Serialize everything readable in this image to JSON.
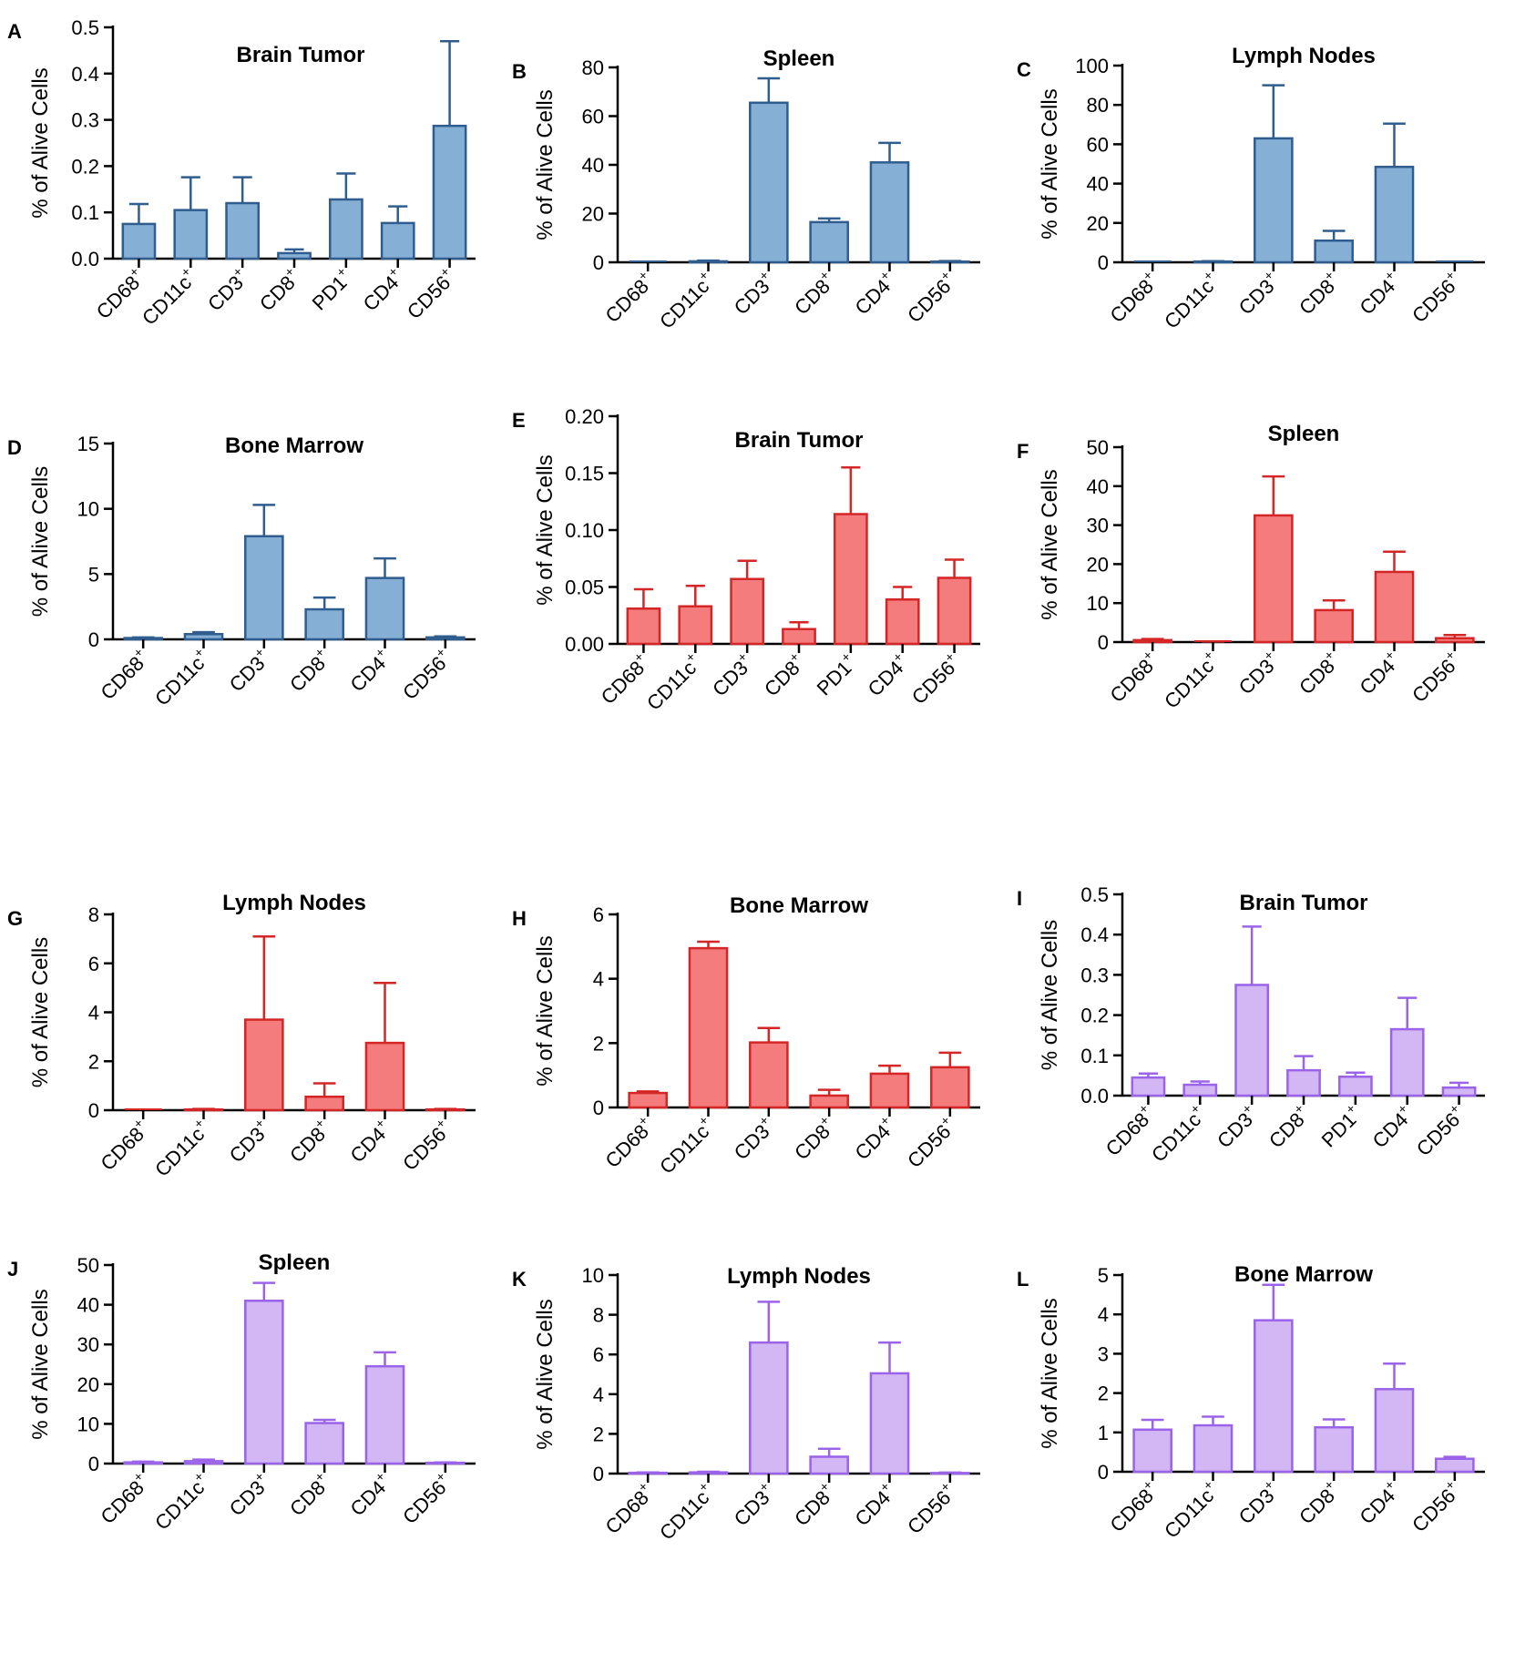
{
  "figure": {
    "ylabel_text": "% of Alive Cells",
    "colors": {
      "blue": {
        "fill": "#86afd6",
        "stroke": "#2f5d8e"
      },
      "red": {
        "fill": "#f47c7c",
        "stroke": "#d42626"
      },
      "purple": {
        "fill": "#d3b6f4",
        "stroke": "#9a63e8"
      }
    }
  },
  "chart_data": [
    {
      "letter": "A",
      "type": "bar",
      "title": "Brain Tumor",
      "color": "blue",
      "ylabel": "% of Alive Cells",
      "ylim": [
        0,
        0.5
      ],
      "yticks": [
        "0.0",
        "0.1",
        "0.2",
        "0.3",
        "0.4",
        "0.5"
      ],
      "categories": [
        "CD68",
        "CD11c",
        "CD3",
        "CD8",
        "PD1",
        "CD4",
        "CD56"
      ],
      "values": [
        0.075,
        0.105,
        0.12,
        0.012,
        0.128,
        0.077,
        0.287
      ],
      "errors": [
        0.043,
        0.071,
        0.056,
        0.008,
        0.056,
        0.036,
        0.183
      ]
    },
    {
      "letter": "B",
      "type": "bar",
      "title": "Spleen",
      "color": "blue",
      "ylabel": "% of Alive Cells",
      "ylim": [
        0,
        80
      ],
      "yticks": [
        "0",
        "20",
        "40",
        "60",
        "80"
      ],
      "categories": [
        "CD68",
        "CD11c",
        "CD3",
        "CD8",
        "CD4",
        "CD56"
      ],
      "values": [
        0,
        0.4,
        65.5,
        16.5,
        41,
        0.3
      ],
      "errors": [
        0,
        0.3,
        10,
        1.5,
        8,
        0.2
      ]
    },
    {
      "letter": "C",
      "type": "bar",
      "title": "Lymph Nodes",
      "color": "blue",
      "ylabel": "% of Alive Cells",
      "ylim": [
        0,
        100
      ],
      "yticks": [
        "0",
        "20",
        "40",
        "60",
        "80",
        "100"
      ],
      "categories": [
        "CD68",
        "CD11c",
        "CD3",
        "CD8",
        "CD4",
        "CD56"
      ],
      "values": [
        0,
        0.4,
        63,
        11,
        48.5,
        0
      ],
      "errors": [
        0,
        0.2,
        27,
        5,
        22,
        0
      ]
    },
    {
      "letter": "D",
      "type": "bar",
      "title": "Bone Marrow",
      "color": "blue",
      "ylabel": "% of Alive Cells",
      "ylim": [
        0,
        15
      ],
      "yticks": [
        "0",
        "5",
        "10",
        "15"
      ],
      "categories": [
        "CD68",
        "CD11c",
        "CD3",
        "CD8",
        "CD4",
        "CD56"
      ],
      "values": [
        0.1,
        0.4,
        7.9,
        2.3,
        4.7,
        0.15
      ],
      "errors": [
        0.05,
        0.15,
        2.4,
        0.9,
        1.5,
        0.08
      ]
    },
    {
      "letter": "E",
      "type": "bar",
      "title": "Brain Tumor",
      "color": "red",
      "ylabel": "% of Alive Cells",
      "ylim": [
        0,
        0.2
      ],
      "yticks": [
        "0.00",
        "0.05",
        "0.10",
        "0.15",
        "0.20"
      ],
      "categories": [
        "CD68",
        "CD11c",
        "CD3",
        "CD8",
        "PD1",
        "CD4",
        "CD56"
      ],
      "values": [
        0.031,
        0.033,
        0.057,
        0.013,
        0.114,
        0.039,
        0.058
      ],
      "errors": [
        0.017,
        0.018,
        0.016,
        0.006,
        0.041,
        0.011,
        0.016
      ]
    },
    {
      "letter": "F",
      "type": "bar",
      "title": "Spleen",
      "color": "red",
      "ylabel": "% of Alive Cells",
      "ylim": [
        0,
        50
      ],
      "yticks": [
        "0",
        "10",
        "20",
        "30",
        "40",
        "50"
      ],
      "categories": [
        "CD68",
        "CD11c",
        "CD3",
        "CD8",
        "CD4",
        "CD56"
      ],
      "values": [
        0.5,
        0.1,
        32.5,
        8.2,
        18,
        1
      ],
      "errors": [
        0.3,
        0.05,
        10,
        2.5,
        5.2,
        0.8
      ]
    },
    {
      "letter": "G",
      "type": "bar",
      "title": "Lymph Nodes",
      "color": "red",
      "ylabel": "% of Alive Cells",
      "ylim": [
        0,
        8
      ],
      "yticks": [
        "0",
        "2",
        "4",
        "6",
        "8"
      ],
      "categories": [
        "CD68",
        "CD11c",
        "CD3",
        "CD8",
        "CD4",
        "CD56"
      ],
      "values": [
        0,
        0.03,
        3.7,
        0.55,
        2.75,
        0.03
      ],
      "errors": [
        0,
        0.02,
        3.4,
        0.55,
        2.45,
        0.02
      ]
    },
    {
      "letter": "H",
      "type": "bar",
      "title": "Bone Marrow",
      "color": "red",
      "ylabel": "% of Alive Cells",
      "ylim": [
        0,
        6
      ],
      "yticks": [
        "0",
        "2",
        "4",
        "6"
      ],
      "categories": [
        "CD68",
        "CD11c",
        "CD3",
        "CD8",
        "CD4",
        "CD56"
      ],
      "values": [
        0.45,
        4.95,
        2.02,
        0.37,
        1.05,
        1.25
      ],
      "errors": [
        0.05,
        0.2,
        0.45,
        0.18,
        0.25,
        0.45
      ]
    },
    {
      "letter": "I",
      "type": "bar",
      "title": "Brain Tumor",
      "color": "purple",
      "ylabel": "% of Alive Cells",
      "ylim": [
        0,
        0.5
      ],
      "yticks": [
        "0.0",
        "0.1",
        "0.2",
        "0.3",
        "0.4",
        "0.5"
      ],
      "categories": [
        "CD68",
        "CD11c",
        "CD3",
        "CD8",
        "PD1",
        "CD4",
        "CD56"
      ],
      "values": [
        0.045,
        0.027,
        0.275,
        0.063,
        0.047,
        0.165,
        0.02
      ],
      "errors": [
        0.01,
        0.008,
        0.145,
        0.035,
        0.01,
        0.078,
        0.012
      ]
    },
    {
      "letter": "J",
      "type": "bar",
      "title": "Spleen",
      "color": "purple",
      "ylabel": "% of Alive Cells",
      "ylim": [
        0,
        50
      ],
      "yticks": [
        "0",
        "10",
        "20",
        "30",
        "40",
        "50"
      ],
      "categories": [
        "CD68",
        "CD11c",
        "CD3",
        "CD8",
        "CD4",
        "CD56"
      ],
      "values": [
        0.3,
        0.6,
        41,
        10.2,
        24.5,
        0.2
      ],
      "errors": [
        0.2,
        0.4,
        4.5,
        0.8,
        3.5,
        0.1
      ]
    },
    {
      "letter": "K",
      "type": "bar",
      "title": "Lymph Nodes",
      "color": "purple",
      "ylabel": "% of Alive Cells",
      "ylim": [
        0,
        10
      ],
      "yticks": [
        "0",
        "2",
        "4",
        "6",
        "8",
        "10"
      ],
      "categories": [
        "CD68",
        "CD11c",
        "CD3",
        "CD8",
        "CD4",
        "CD56"
      ],
      "values": [
        0.04,
        0.06,
        6.6,
        0.85,
        5.05,
        0.03
      ],
      "errors": [
        0.02,
        0.03,
        2.05,
        0.4,
        1.55,
        0.02
      ]
    },
    {
      "letter": "L",
      "type": "bar",
      "title": "Bone Marrow",
      "color": "purple",
      "ylabel": "% of Alive Cells",
      "ylim": [
        0,
        5
      ],
      "yticks": [
        "0",
        "1",
        "2",
        "3",
        "4",
        "5"
      ],
      "categories": [
        "CD68",
        "CD11c",
        "CD3",
        "CD8",
        "CD4",
        "CD56"
      ],
      "values": [
        1.07,
        1.18,
        3.85,
        1.13,
        2.1,
        0.33
      ],
      "errors": [
        0.25,
        0.22,
        0.9,
        0.2,
        0.65,
        0.05
      ]
    }
  ]
}
